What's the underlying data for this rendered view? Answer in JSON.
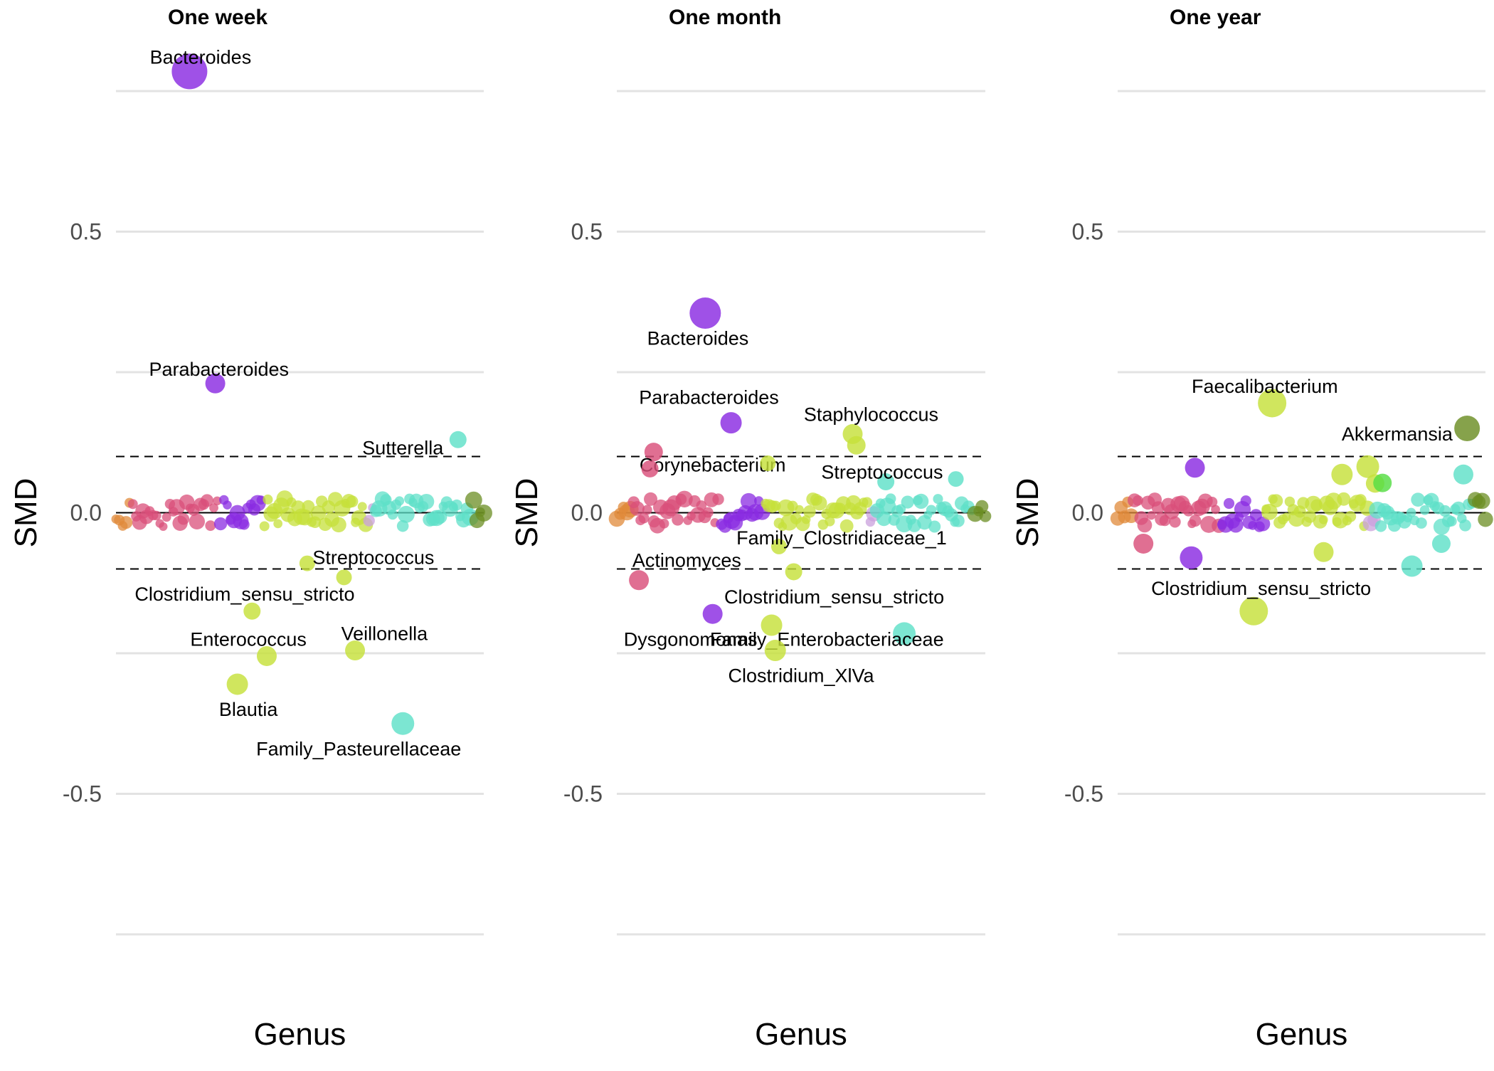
{
  "chart_data": [
    {
      "type": "scatter",
      "title": "One week",
      "xlabel": "Genus",
      "ylabel": "SMD",
      "ylim": [
        -0.75,
        0.75
      ],
      "yticks": [
        -0.5,
        0.0,
        0.5
      ],
      "threshold": 0.1,
      "grid": true,
      "x_domain": [
        0,
        100
      ],
      "points": [
        {
          "label": "Bacteroides",
          "x": 20,
          "y": 0.785,
          "size": 25,
          "color": "#8a2be2",
          "lx": 23,
          "ly": 0.81
        },
        {
          "label": "Parabacteroides",
          "x": 27,
          "y": 0.23,
          "size": 14,
          "color": "#8a2be2",
          "lx": 28,
          "ly": 0.255
        },
        {
          "label": "Sutterella",
          "x": 93,
          "y": 0.13,
          "size": 12,
          "color": "#5fe0c8",
          "lx": 78,
          "ly": 0.115
        },
        {
          "label": "Streptococcus",
          "x": 52,
          "y": -0.09,
          "size": 11,
          "color": "#c6e03a",
          "lx": 70,
          "ly": -0.08
        },
        {
          "label": "Clostridium_sensu_stricto",
          "x": 62,
          "y": -0.115,
          "size": 11,
          "color": "#c6e03a",
          "lx": 35,
          "ly": -0.145
        },
        {
          "label": "Enterococcus",
          "x": 37,
          "y": -0.175,
          "size": 12,
          "color": "#c6e03a",
          "lx": 36,
          "ly": -0.225
        },
        {
          "label": "Veillonella",
          "x": 65,
          "y": -0.245,
          "size": 14,
          "color": "#c6e03a",
          "lx": 73,
          "ly": -0.215
        },
        {
          "label": "Blautia",
          "x": 41,
          "y": -0.255,
          "size": 14,
          "color": "#c6e03a",
          "lx": 36,
          "ly": -0.35
        },
        {
          "label": "Family_Pasteurellaceae",
          "x": 33,
          "y": -0.305,
          "size": 15,
          "color": "#c6e03a",
          "lx": 66,
          "ly": -0.42
        },
        {
          "label": "",
          "x": 78,
          "y": -0.375,
          "size": 16,
          "color": "#5fe0c8",
          "lx": 0,
          "ly": 0
        }
      ]
    },
    {
      "type": "scatter",
      "title": "One month",
      "xlabel": "Genus",
      "ylabel": "SMD",
      "ylim": [
        -0.75,
        0.75
      ],
      "yticks": [
        -0.5,
        0.0,
        0.5
      ],
      "threshold": 0.1,
      "grid": true,
      "x_domain": [
        0,
        100
      ],
      "points": [
        {
          "label": "Bacteroides",
          "x": 24,
          "y": 0.355,
          "size": 22,
          "color": "#8a2be2",
          "lx": 22,
          "ly": 0.31
        },
        {
          "label": "Parabacteroides",
          "x": 31,
          "y": 0.16,
          "size": 15,
          "color": "#8a2be2",
          "lx": 25,
          "ly": 0.205
        },
        {
          "label": "Staphylococcus",
          "x": 64,
          "y": 0.14,
          "size": 14,
          "color": "#c6e03a",
          "lx": 69,
          "ly": 0.175
        },
        {
          "label": "",
          "x": 65,
          "y": 0.12,
          "size": 13,
          "color": "#c6e03a",
          "lx": 0,
          "ly": 0
        },
        {
          "label": "Corynebacterium",
          "x": 10,
          "y": 0.108,
          "size": 13,
          "color": "#d94f7a",
          "lx": 26,
          "ly": 0.085
        },
        {
          "label": "",
          "x": 9,
          "y": 0.078,
          "size": 12,
          "color": "#d94f7a",
          "lx": 0,
          "ly": 0
        },
        {
          "label": "",
          "x": 41,
          "y": 0.088,
          "size": 11,
          "color": "#c6e03a",
          "lx": 0,
          "ly": 0
        },
        {
          "label": "Streptococcus",
          "x": 73,
          "y": 0.055,
          "size": 12,
          "color": "#5fe0c8",
          "lx": 72,
          "ly": 0.072
        },
        {
          "label": "",
          "x": 92,
          "y": 0.06,
          "size": 11,
          "color": "#5fe0c8",
          "lx": 0,
          "ly": 0
        },
        {
          "label": "Family_Clostridiaceae_1",
          "x": 44,
          "y": -0.06,
          "size": 11,
          "color": "#c6e03a",
          "lx": 61,
          "ly": -0.045
        },
        {
          "label": "Actinomyces",
          "x": 6,
          "y": -0.12,
          "size": 14,
          "color": "#d94f7a",
          "lx": 19,
          "ly": -0.085
        },
        {
          "label": "",
          "x": 48,
          "y": -0.105,
          "size": 12,
          "color": "#c6e03a",
          "lx": 0,
          "ly": 0
        },
        {
          "label": "Clostridium_sensu_stricto",
          "x": 26,
          "y": -0.18,
          "size": 14,
          "color": "#8a2be2",
          "lx": 59,
          "ly": -0.15
        },
        {
          "label": "Dysgonomonas",
          "x": 42,
          "y": -0.2,
          "size": 15,
          "color": "#c6e03a",
          "lx": 20,
          "ly": -0.225
        },
        {
          "label": "Family_Enterobacteriaceae",
          "x": 78,
          "y": -0.215,
          "size": 16,
          "color": "#5fe0c8",
          "lx": 57,
          "ly": -0.225
        },
        {
          "label": "Clostridium_XlVa",
          "x": 43,
          "y": -0.245,
          "size": 15,
          "color": "#c6e03a",
          "lx": 50,
          "ly": -0.29
        }
      ]
    },
    {
      "type": "scatter",
      "title": "One year",
      "xlabel": "Genus",
      "ylabel": "SMD",
      "ylim": [
        -0.75,
        0.75
      ],
      "yticks": [
        -0.5,
        0.0,
        0.5
      ],
      "threshold": 0.1,
      "grid": true,
      "x_domain": [
        0,
        100
      ],
      "points": [
        {
          "label": "Faecalibacterium",
          "x": 42,
          "y": 0.195,
          "size": 20,
          "color": "#c6e03a",
          "lx": 40,
          "ly": 0.225
        },
        {
          "label": "Akkermansia",
          "x": 95,
          "y": 0.15,
          "size": 18,
          "color": "#6b8e23",
          "lx": 76,
          "ly": 0.14
        },
        {
          "label": "",
          "x": 21,
          "y": 0.08,
          "size": 14,
          "color": "#8a2be2",
          "lx": 0,
          "ly": 0
        },
        {
          "label": "",
          "x": 61,
          "y": 0.068,
          "size": 15,
          "color": "#c6e03a",
          "lx": 0,
          "ly": 0
        },
        {
          "label": "",
          "x": 68,
          "y": 0.082,
          "size": 16,
          "color": "#c6e03a",
          "lx": 0,
          "ly": 0
        },
        {
          "label": "",
          "x": 70,
          "y": 0.052,
          "size": 13,
          "color": "#c6e03a",
          "lx": 0,
          "ly": 0
        },
        {
          "label": "",
          "x": 72,
          "y": 0.053,
          "size": 13,
          "color": "#55dd44",
          "lx": 0,
          "ly": 0
        },
        {
          "label": "",
          "x": 94,
          "y": 0.068,
          "size": 14,
          "color": "#5fe0c8",
          "lx": 0,
          "ly": 0
        },
        {
          "label": "",
          "x": 7,
          "y": -0.055,
          "size": 14,
          "color": "#d94f7a",
          "lx": 0,
          "ly": 0
        },
        {
          "label": "",
          "x": 20,
          "y": -0.08,
          "size": 16,
          "color": "#8a2be2",
          "lx": 0,
          "ly": 0
        },
        {
          "label": "",
          "x": 56,
          "y": -0.07,
          "size": 14,
          "color": "#c6e03a",
          "lx": 0,
          "ly": 0
        },
        {
          "label": "",
          "x": 80,
          "y": -0.095,
          "size": 15,
          "color": "#5fe0c8",
          "lx": 0,
          "ly": 0
        },
        {
          "label": "",
          "x": 88,
          "y": -0.055,
          "size": 13,
          "color": "#5fe0c8",
          "lx": 0,
          "ly": 0
        },
        {
          "label": "Clostridium_sensu_stricto",
          "x": 37,
          "y": -0.175,
          "size": 20,
          "color": "#c6e03a",
          "lx": 39,
          "ly": -0.135
        }
      ]
    }
  ]
}
